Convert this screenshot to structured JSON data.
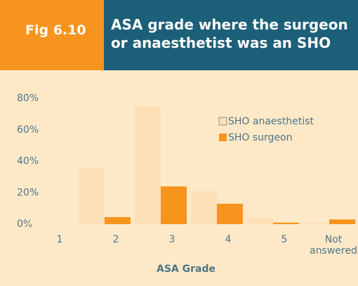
{
  "header": {
    "fig": "Fig 6.10",
    "title": "ASA grade where the surgeon or anaesthetist was an SHO"
  },
  "chart_data": {
    "type": "bar",
    "categories": [
      "1",
      "2",
      "3",
      "4",
      "5",
      "Not answered"
    ],
    "series": [
      {
        "name": "SHO anaesthetist",
        "color": "#fde0b6",
        "values": [
          0.5,
          36,
          75,
          21,
          3.5,
          1
        ]
      },
      {
        "name": "SHO surgeon",
        "color": "#f7941d",
        "values": [
          0,
          4.5,
          24,
          13,
          1,
          3
        ]
      }
    ],
    "x_label": "ASA Grade",
    "ylim": [
      0,
      80
    ],
    "yticks": [
      {
        "value": 0,
        "label": "0%"
      },
      {
        "value": 20,
        "label": "20%"
      },
      {
        "value": 40,
        "label": "40%"
      },
      {
        "value": 60,
        "label": "60%"
      },
      {
        "value": 80,
        "label": "80%"
      }
    ],
    "legend": "upper right"
  }
}
